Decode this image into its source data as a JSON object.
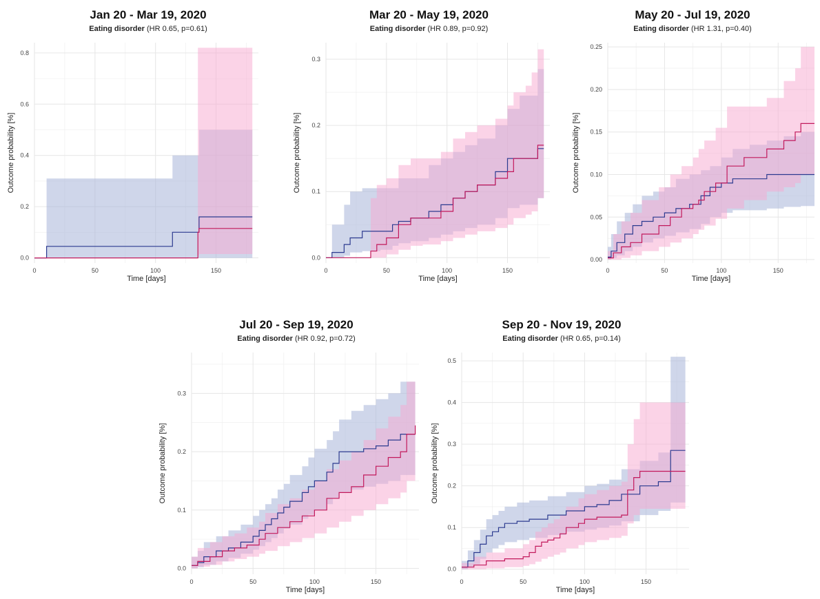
{
  "colors": {
    "series_a": "#2b3a8f",
    "series_a_band": "#a8b5d8",
    "series_b": "#c2185b",
    "series_b_band": "#f8a8cf",
    "grid": "#e6e6e6"
  },
  "chart_data": [
    {
      "type": "line",
      "title": "Jan 20 - Mar 19, 2020",
      "subtitle_bold": "Eating disorder",
      "subtitle_rest": " (HR 0.65, p=0.61)",
      "xlabel": "Time [days]",
      "ylabel": "Outcome probability [%]",
      "xlim": [
        0,
        185
      ],
      "ylim": [
        -0.02,
        0.84
      ],
      "xticks": [
        0,
        50,
        100,
        150
      ],
      "yticks": [
        0.0,
        0.2,
        0.4,
        0.6,
        0.8
      ],
      "ytick_labels": [
        "0.0",
        "0.2",
        "0.4",
        "0.6",
        "0.8"
      ],
      "series": [
        {
          "x": [
            0,
            10,
            114,
            135,
            136,
            180
          ],
          "y": [
            0,
            0.045,
            0.1,
            0.1,
            0.16,
            0.16
          ],
          "lower": [
            0,
            0.0,
            0.0,
            0.0,
            0.0,
            0.0
          ],
          "upper": [
            0,
            0.31,
            0.4,
            0.4,
            0.5,
            0.5
          ]
        },
        {
          "x": [
            0,
            134,
            135,
            136,
            180
          ],
          "y": [
            0,
            0,
            0.1,
            0.115,
            0.115
          ],
          "lower": [
            0,
            0,
            0.01,
            0.015,
            0.015
          ],
          "upper": [
            0,
            0,
            0.82,
            0.82,
            0.82
          ]
        }
      ]
    },
    {
      "type": "line",
      "title": "Mar 20 - May 19, 2020",
      "subtitle_bold": "Eating disorder",
      "subtitle_rest": " (HR 0.89, p=0.92)",
      "xlabel": "Time [days]",
      "ylabel": "Outcome probability [%]",
      "xlim": [
        0,
        185
      ],
      "ylim": [
        -0.008,
        0.325
      ],
      "xticks": [
        0,
        50,
        100,
        150
      ],
      "yticks": [
        0.0,
        0.1,
        0.2,
        0.3
      ],
      "ytick_labels": [
        "0.0",
        "0.1",
        "0.2",
        "0.3"
      ],
      "series": [
        {
          "x": [
            0,
            5,
            15,
            20,
            30,
            45,
            55,
            60,
            70,
            85,
            95,
            105,
            115,
            125,
            140,
            150,
            160,
            175,
            180
          ],
          "y": [
            0,
            0.008,
            0.02,
            0.03,
            0.04,
            0.04,
            0.05,
            0.055,
            0.06,
            0.07,
            0.08,
            0.09,
            0.1,
            0.11,
            0.13,
            0.15,
            0.15,
            0.165,
            0.165
          ],
          "lower": [
            0,
            0.0,
            0.003,
            0.008,
            0.01,
            0.012,
            0.018,
            0.022,
            0.025,
            0.03,
            0.035,
            0.04,
            0.045,
            0.05,
            0.06,
            0.075,
            0.08,
            0.09,
            0.09
          ],
          "upper": [
            0,
            0.05,
            0.08,
            0.1,
            0.105,
            0.105,
            0.105,
            0.12,
            0.12,
            0.14,
            0.15,
            0.16,
            0.17,
            0.18,
            0.2,
            0.225,
            0.245,
            0.285,
            0.285
          ]
        },
        {
          "x": [
            0,
            37,
            42,
            50,
            60,
            70,
            80,
            95,
            105,
            115,
            125,
            140,
            150,
            155,
            165,
            170,
            175,
            180
          ],
          "y": [
            0,
            0.01,
            0.02,
            0.03,
            0.05,
            0.06,
            0.06,
            0.07,
            0.09,
            0.1,
            0.11,
            0.12,
            0.13,
            0.15,
            0.15,
            0.15,
            0.17,
            0.17
          ],
          "lower": [
            0,
            0.0,
            0.0,
            0.005,
            0.012,
            0.018,
            0.02,
            0.025,
            0.03,
            0.035,
            0.04,
            0.045,
            0.05,
            0.06,
            0.065,
            0.07,
            0.09,
            0.09
          ],
          "upper": [
            0,
            0.09,
            0.11,
            0.12,
            0.14,
            0.15,
            0.15,
            0.16,
            0.18,
            0.19,
            0.2,
            0.21,
            0.23,
            0.25,
            0.26,
            0.28,
            0.315,
            0.315
          ]
        }
      ]
    },
    {
      "type": "line",
      "title": "May 20 - Jul 19, 2020",
      "subtitle_bold": "Eating disorder",
      "subtitle_rest": " (HR 1.31, p=0.40)",
      "xlabel": "Time [days]",
      "ylabel": "Outcome probability [%]",
      "xlim": [
        0,
        182
      ],
      "ylim": [
        -0.004,
        0.255
      ],
      "xticks": [
        0,
        50,
        100,
        150
      ],
      "yticks": [
        0.0,
        0.05,
        0.1,
        0.15,
        0.2,
        0.25
      ],
      "ytick_labels": [
        "0.00",
        "0.05",
        "0.10",
        "0.15",
        "0.20",
        "0.25"
      ],
      "series": [
        {
          "x": [
            0,
            3,
            8,
            15,
            22,
            30,
            40,
            50,
            60,
            72,
            82,
            90,
            100,
            110,
            125,
            140,
            155,
            170,
            182
          ],
          "y": [
            0.003,
            0.01,
            0.02,
            0.03,
            0.04,
            0.045,
            0.05,
            0.055,
            0.06,
            0.065,
            0.075,
            0.085,
            0.09,
            0.095,
            0.095,
            0.1,
            0.1,
            0.1,
            0.1
          ],
          "lower": [
            0,
            0.002,
            0.005,
            0.01,
            0.015,
            0.02,
            0.025,
            0.028,
            0.032,
            0.036,
            0.042,
            0.05,
            0.055,
            0.058,
            0.058,
            0.06,
            0.062,
            0.063,
            0.063
          ],
          "upper": [
            0.015,
            0.03,
            0.045,
            0.055,
            0.065,
            0.075,
            0.08,
            0.085,
            0.095,
            0.1,
            0.105,
            0.11,
            0.12,
            0.13,
            0.135,
            0.14,
            0.145,
            0.15,
            0.15
          ]
        },
        {
          "x": [
            0,
            5,
            12,
            20,
            30,
            45,
            55,
            65,
            75,
            80,
            85,
            95,
            105,
            120,
            140,
            155,
            165,
            170,
            182
          ],
          "y": [
            0.002,
            0.008,
            0.015,
            0.02,
            0.03,
            0.04,
            0.05,
            0.06,
            0.065,
            0.07,
            0.08,
            0.09,
            0.11,
            0.12,
            0.13,
            0.14,
            0.15,
            0.16,
            0.16
          ],
          "lower": [
            0,
            0.0,
            0.002,
            0.005,
            0.01,
            0.015,
            0.02,
            0.025,
            0.03,
            0.035,
            0.04,
            0.048,
            0.06,
            0.07,
            0.08,
            0.085,
            0.09,
            0.1,
            0.1
          ],
          "upper": [
            0.01,
            0.03,
            0.045,
            0.055,
            0.07,
            0.085,
            0.1,
            0.11,
            0.12,
            0.13,
            0.14,
            0.155,
            0.18,
            0.18,
            0.19,
            0.21,
            0.225,
            0.25,
            0.25
          ]
        }
      ]
    },
    {
      "type": "line",
      "title": "Jul 20 - Sep 19, 2020",
      "subtitle_bold": "Eating disorder",
      "subtitle_rest": " (HR 0.92, p=0.72)",
      "xlabel": "Time [days]",
      "ylabel": "Outcome probability [%]",
      "xlim": [
        0,
        185
      ],
      "ylim": [
        -0.01,
        0.37
      ],
      "xticks": [
        0,
        50,
        100,
        150
      ],
      "yticks": [
        0.0,
        0.1,
        0.2,
        0.3
      ],
      "ytick_labels": [
        "0.0",
        "0.1",
        "0.2",
        "0.3"
      ],
      "series": [
        {
          "x": [
            0,
            5,
            10,
            20,
            30,
            40,
            50,
            55,
            60,
            65,
            70,
            75,
            80,
            90,
            95,
            100,
            110,
            115,
            120,
            130,
            140,
            150,
            160,
            170,
            182
          ],
          "y": [
            0.005,
            0.01,
            0.02,
            0.03,
            0.035,
            0.045,
            0.055,
            0.065,
            0.075,
            0.085,
            0.095,
            0.105,
            0.115,
            0.13,
            0.14,
            0.15,
            0.165,
            0.18,
            0.2,
            0.2,
            0.205,
            0.21,
            0.22,
            0.23,
            0.23
          ],
          "lower": [
            0,
            0.002,
            0.006,
            0.012,
            0.018,
            0.025,
            0.032,
            0.038,
            0.045,
            0.052,
            0.06,
            0.068,
            0.075,
            0.085,
            0.092,
            0.1,
            0.11,
            0.12,
            0.13,
            0.135,
            0.14,
            0.145,
            0.15,
            0.16,
            0.165
          ],
          "upper": [
            0.02,
            0.03,
            0.045,
            0.055,
            0.065,
            0.075,
            0.09,
            0.1,
            0.11,
            0.12,
            0.135,
            0.145,
            0.16,
            0.175,
            0.19,
            0.205,
            0.22,
            0.235,
            0.255,
            0.27,
            0.28,
            0.29,
            0.3,
            0.32,
            0.32
          ]
        },
        {
          "x": [
            0,
            5,
            15,
            25,
            35,
            45,
            55,
            60,
            70,
            80,
            90,
            100,
            110,
            120,
            130,
            140,
            150,
            160,
            170,
            175,
            182
          ],
          "y": [
            0.005,
            0.012,
            0.02,
            0.03,
            0.035,
            0.04,
            0.05,
            0.06,
            0.07,
            0.08,
            0.09,
            0.1,
            0.12,
            0.13,
            0.14,
            0.16,
            0.175,
            0.19,
            0.2,
            0.23,
            0.245
          ],
          "lower": [
            0,
            0.003,
            0.006,
            0.012,
            0.016,
            0.02,
            0.025,
            0.03,
            0.038,
            0.045,
            0.052,
            0.06,
            0.07,
            0.08,
            0.09,
            0.1,
            0.11,
            0.12,
            0.13,
            0.15,
            0.165
          ],
          "upper": [
            0.02,
            0.035,
            0.045,
            0.055,
            0.06,
            0.07,
            0.08,
            0.095,
            0.11,
            0.12,
            0.135,
            0.15,
            0.17,
            0.185,
            0.2,
            0.22,
            0.24,
            0.26,
            0.28,
            0.32,
            0.365
          ]
        }
      ]
    },
    {
      "type": "line",
      "title": "Sep 20 - Nov 19, 2020",
      "subtitle_bold": "Eating disorder",
      "subtitle_rest": " (HR 0.65, p=0.14)",
      "xlabel": "Time [days]",
      "ylabel": "Outcome probability [%]",
      "xlim": [
        0,
        185
      ],
      "ylim": [
        -0.012,
        0.52
      ],
      "xticks": [
        0,
        50,
        100,
        150
      ],
      "yticks": [
        0.0,
        0.1,
        0.2,
        0.3,
        0.4,
        0.5
      ],
      "ytick_labels": [
        "0.0",
        "0.1",
        "0.2",
        "0.3",
        "0.4",
        "0.5"
      ],
      "series": [
        {
          "x": [
            0,
            5,
            10,
            15,
            20,
            25,
            30,
            35,
            45,
            55,
            70,
            85,
            100,
            110,
            120,
            130,
            145,
            160,
            170,
            182
          ],
          "y": [
            0.005,
            0.02,
            0.04,
            0.06,
            0.08,
            0.09,
            0.1,
            0.11,
            0.115,
            0.12,
            0.13,
            0.14,
            0.15,
            0.155,
            0.165,
            0.18,
            0.2,
            0.21,
            0.285,
            0.285
          ],
          "lower": [
            0,
            0.005,
            0.012,
            0.025,
            0.04,
            0.05,
            0.058,
            0.065,
            0.07,
            0.075,
            0.082,
            0.09,
            0.095,
            0.1,
            0.105,
            0.115,
            0.13,
            0.14,
            0.16,
            0.16
          ],
          "upper": [
            0.02,
            0.045,
            0.07,
            0.095,
            0.12,
            0.13,
            0.14,
            0.15,
            0.16,
            0.165,
            0.175,
            0.185,
            0.2,
            0.205,
            0.215,
            0.24,
            0.26,
            0.28,
            0.51,
            0.51
          ]
        },
        {
          "x": [
            0,
            10,
            20,
            35,
            50,
            55,
            60,
            65,
            70,
            75,
            80,
            85,
            95,
            100,
            110,
            120,
            130,
            135,
            140,
            145,
            182
          ],
          "y": [
            0.005,
            0.01,
            0.02,
            0.025,
            0.03,
            0.04,
            0.055,
            0.065,
            0.07,
            0.075,
            0.085,
            0.1,
            0.11,
            0.12,
            0.125,
            0.125,
            0.13,
            0.19,
            0.22,
            0.235,
            0.235
          ],
          "lower": [
            0,
            0.0,
            0.002,
            0.005,
            0.008,
            0.012,
            0.018,
            0.025,
            0.03,
            0.035,
            0.04,
            0.05,
            0.058,
            0.065,
            0.07,
            0.075,
            0.08,
            0.11,
            0.13,
            0.145,
            0.145
          ],
          "upper": [
            0.015,
            0.03,
            0.04,
            0.05,
            0.06,
            0.07,
            0.09,
            0.1,
            0.11,
            0.12,
            0.13,
            0.15,
            0.17,
            0.18,
            0.19,
            0.2,
            0.21,
            0.3,
            0.36,
            0.4,
            0.4
          ]
        }
      ]
    }
  ]
}
